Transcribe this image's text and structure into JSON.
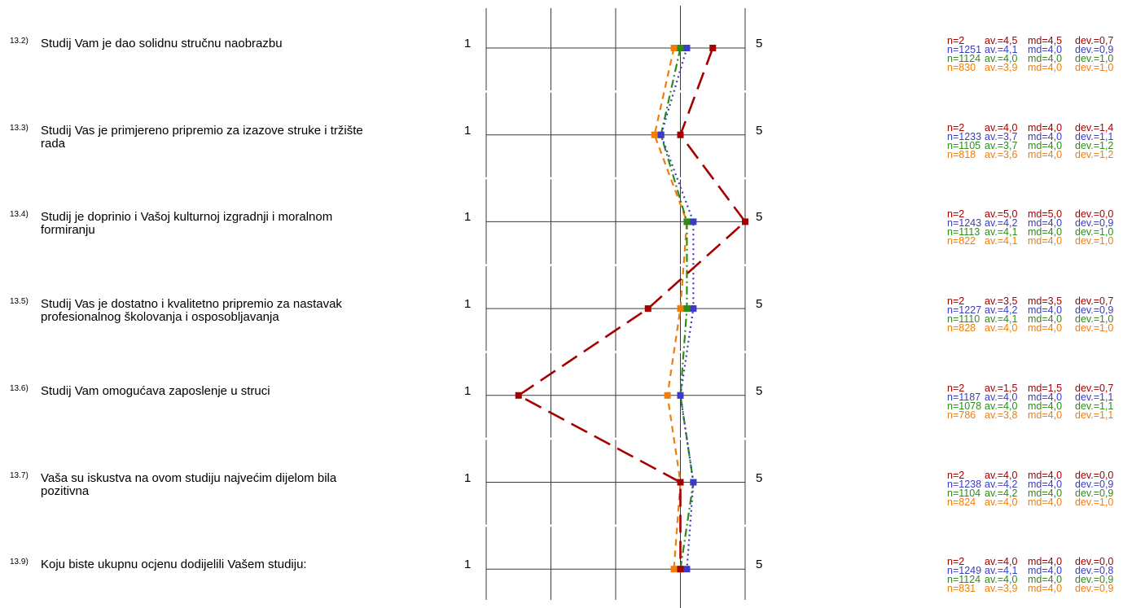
{
  "chart_data": {
    "type": "line",
    "scale": {
      "min_label": "1",
      "max_label": "5",
      "min": 1,
      "max": 5
    },
    "series": [
      {
        "color": "#a50000",
        "dash": "long-dash"
      },
      {
        "color": "#3b3bc4",
        "dash": "dotted"
      },
      {
        "color": "#2e8b1a",
        "dash": "dash-dot"
      },
      {
        "color": "#f07d0c",
        "dash": "dashed"
      }
    ],
    "items": [
      {
        "num": "13.2)",
        "text": "Studij Vam je dao solidnu stručnu naobrazbu",
        "values": [
          4.5,
          4.1,
          4.0,
          3.9
        ],
        "stats": [
          {
            "n": "n=2",
            "av": "av.=4,5",
            "md": "md=4,5",
            "dev": "dev.=0,7"
          },
          {
            "n": "n=1251",
            "av": "av.=4,1",
            "md": "md=4,0",
            "dev": "dev.=0,9"
          },
          {
            "n": "n=1124",
            "av": "av.=4,0",
            "md": "md=4,0",
            "dev": "dev.=1,0"
          },
          {
            "n": "n=830",
            "av": "av.=3,9",
            "md": "md=4,0",
            "dev": "dev.=1,0"
          }
        ]
      },
      {
        "num": "13.3)",
        "text": "Studij Vas je primjereno pripremio za izazove struke i tržište rada",
        "values": [
          4.0,
          3.7,
          3.7,
          3.6
        ],
        "stats": [
          {
            "n": "n=2",
            "av": "av.=4,0",
            "md": "md=4,0",
            "dev": "dev.=1,4"
          },
          {
            "n": "n=1233",
            "av": "av.=3,7",
            "md": "md=4,0",
            "dev": "dev.=1,1"
          },
          {
            "n": "n=1105",
            "av": "av.=3,7",
            "md": "md=4,0",
            "dev": "dev.=1,2"
          },
          {
            "n": "n=818",
            "av": "av.=3,6",
            "md": "md=4,0",
            "dev": "dev.=1,2"
          }
        ]
      },
      {
        "num": "13.4)",
        "text": "Studij je doprinio i Vašoj kulturnoj izgradnji i moralnom formiranju",
        "values": [
          5.0,
          4.2,
          4.1,
          4.1
        ],
        "stats": [
          {
            "n": "n=2",
            "av": "av.=5,0",
            "md": "md=5,0",
            "dev": "dev.=0,0"
          },
          {
            "n": "n=1243",
            "av": "av.=4,2",
            "md": "md=4,0",
            "dev": "dev.=0,9"
          },
          {
            "n": "n=1113",
            "av": "av.=4,1",
            "md": "md=4,0",
            "dev": "dev.=1,0"
          },
          {
            "n": "n=822",
            "av": "av.=4,1",
            "md": "md=4,0",
            "dev": "dev.=1,0"
          }
        ]
      },
      {
        "num": "13.5)",
        "text": "Studij Vas je dostatno i kvalitetno pripremio za nastavak profesionalnog školovanja i osposobljavanja",
        "values": [
          3.5,
          4.2,
          4.1,
          4.0
        ],
        "stats": [
          {
            "n": "n=2",
            "av": "av.=3,5",
            "md": "md=3,5",
            "dev": "dev.=0,7"
          },
          {
            "n": "n=1227",
            "av": "av.=4,2",
            "md": "md=4,0",
            "dev": "dev.=0,9"
          },
          {
            "n": "n=1110",
            "av": "av.=4,1",
            "md": "md=4,0",
            "dev": "dev.=1,0"
          },
          {
            "n": "n=828",
            "av": "av.=4,0",
            "md": "md=4,0",
            "dev": "dev.=1,0"
          }
        ]
      },
      {
        "num": "13.6)",
        "text": "Studij Vam omogućava  zaposlenje u struci",
        "values": [
          1.5,
          4.0,
          4.0,
          3.8
        ],
        "stats": [
          {
            "n": "n=2",
            "av": "av.=1,5",
            "md": "md=1,5",
            "dev": "dev.=0,7"
          },
          {
            "n": "n=1187",
            "av": "av.=4,0",
            "md": "md=4,0",
            "dev": "dev.=1,1"
          },
          {
            "n": "n=1078",
            "av": "av.=4,0",
            "md": "md=4,0",
            "dev": "dev.=1,1"
          },
          {
            "n": "n=786",
            "av": "av.=3,8",
            "md": "md=4,0",
            "dev": "dev.=1,1"
          }
        ]
      },
      {
        "num": "13.7)",
        "text": "Vaša su iskustva na ovom studiju najvećim dijelom bila pozitivna",
        "values": [
          4.0,
          4.2,
          4.2,
          4.0
        ],
        "stats": [
          {
            "n": "n=2",
            "av": "av.=4,0",
            "md": "md=4,0",
            "dev": "dev.=0,0"
          },
          {
            "n": "n=1238",
            "av": "av.=4,2",
            "md": "md=4,0",
            "dev": "dev.=0,9"
          },
          {
            "n": "n=1104",
            "av": "av.=4,2",
            "md": "md=4,0",
            "dev": "dev.=0,9"
          },
          {
            "n": "n=824",
            "av": "av.=4,0",
            "md": "md=4,0",
            "dev": "dev.=1,0"
          }
        ]
      },
      {
        "num": "13.9)",
        "text": "Koju biste ukupnu ocjenu dodijelili Vašem studiju:",
        "values": [
          4.0,
          4.1,
          4.0,
          3.9
        ],
        "stats": [
          {
            "n": "n=2",
            "av": "av.=4,0",
            "md": "md=4,0",
            "dev": "dev.=0,0"
          },
          {
            "n": "n=1249",
            "av": "av.=4,1",
            "md": "md=4,0",
            "dev": "dev.=0,8"
          },
          {
            "n": "n=1124",
            "av": "av.=4,0",
            "md": "md=4,0",
            "dev": "dev.=0,9"
          },
          {
            "n": "n=831",
            "av": "av.=3,9",
            "md": "md=4,0",
            "dev": "dev.=0,9"
          }
        ]
      }
    ]
  }
}
